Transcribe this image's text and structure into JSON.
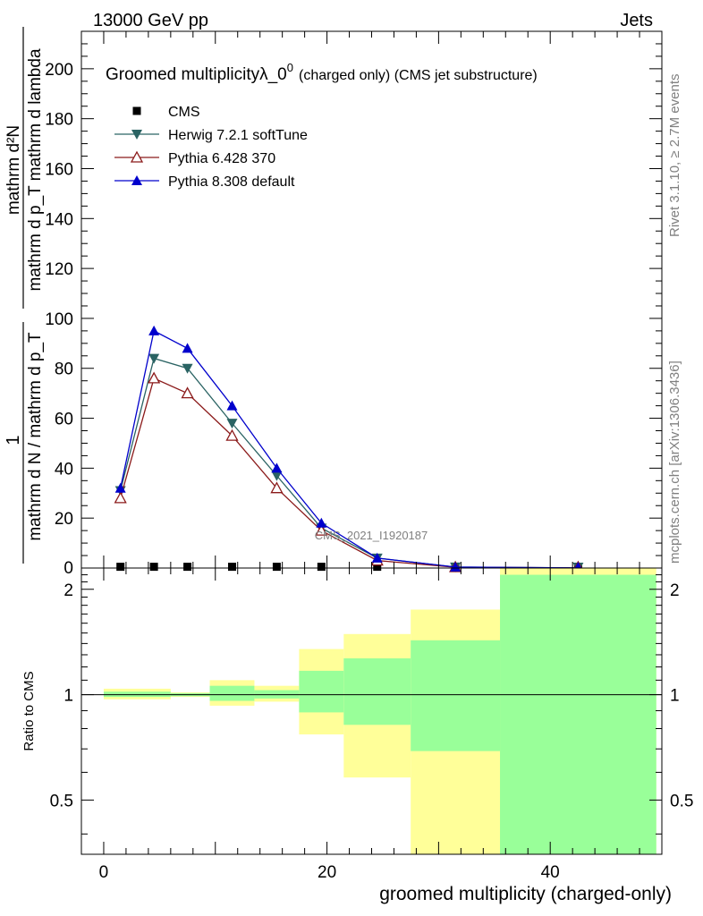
{
  "header": {
    "left": "13000 GeV pp",
    "right": "Jets"
  },
  "side_labels": {
    "rivet": "Rivet 3.1.10, ≥ 2.7M events",
    "mcplots": "mcplots.cern.ch [arXiv:1306.3436]"
  },
  "chart_data": [
    {
      "type": "line",
      "title": "Groomed multiplicityλ_0",
      "title_sup": "0",
      "subtitle": "(charged only) (CMS jet substructure)",
      "watermark": "CMS_2021_I1920187",
      "ylabel_numerator": "mathrm d²N",
      "ylabel_denominator": "mathrm d p_T mathrm d lambda",
      "ylabel_prefix_numerator": "1",
      "ylabel_prefix_denominator": "mathrm d N / mathrm d p_T",
      "xlim": [
        -2,
        50
      ],
      "ylim": [
        0,
        215
      ],
      "yticks": [
        20,
        40,
        60,
        80,
        100,
        120,
        140,
        160,
        180,
        200
      ],
      "ytick_labels": [
        "20",
        "40",
        "60",
        "80",
        "100",
        "120",
        "140",
        "160",
        "180",
        "200"
      ],
      "ytick_zero_label": "0",
      "x": [
        1.5,
        4.5,
        7.5,
        11.5,
        15.5,
        19.5,
        24.5,
        31.5,
        42.5
      ],
      "bin_edges": [
        0,
        3,
        6,
        9,
        14,
        17,
        22,
        27,
        36,
        49
      ],
      "series": [
        {
          "name": "CMS",
          "color": "#000000",
          "marker": "square",
          "values": [
            0.5,
            0.5,
            0.5,
            0.5,
            0.5,
            0.5,
            0.5,
            0.3,
            0.3
          ]
        },
        {
          "name": "Herwig 7.2.1 softTune",
          "color": "#2a6363",
          "marker": "triangle-down",
          "values": [
            31,
            84,
            80,
            58,
            37,
            16,
            4,
            0.4,
            0.05
          ]
        },
        {
          "name": "Pythia 6.428 370",
          "color": "#8b1a1a",
          "marker": "triangle-up-open",
          "values": [
            28,
            76,
            70,
            53,
            32,
            15,
            3,
            0.3,
            0.05
          ]
        },
        {
          "name": "Pythia 8.308 default",
          "color": "#0000cc",
          "marker": "triangle-up",
          "values": [
            32,
            95,
            88,
            65,
            40,
            18,
            4,
            0.4,
            0.05
          ]
        }
      ]
    },
    {
      "type": "area",
      "ylabel": "Ratio to CMS",
      "xlabel": "groomed multiplicity (charged-only)",
      "xlim": [
        -2,
        50
      ],
      "ylim": [
        0.35,
        2.3
      ],
      "yticks": [
        0.5,
        1,
        2
      ],
      "ytick_labels": [
        "0.5",
        "1",
        "2"
      ],
      "xticks": [
        0,
        20,
        40
      ],
      "xtick_labels": [
        "0",
        "20",
        "40"
      ],
      "reference_line": 1,
      "bands": [
        {
          "x0": 0,
          "x1": 6,
          "yellow": [
            0.97,
            1.04
          ],
          "green": [
            0.985,
            1.02
          ]
        },
        {
          "x0": 6,
          "x1": 9.5,
          "yellow": [
            0.985,
            1.015
          ],
          "green": [
            0.99,
            1.01
          ]
        },
        {
          "x0": 9.5,
          "x1": 13.5,
          "yellow": [
            0.93,
            1.1
          ],
          "green": [
            0.96,
            1.06
          ]
        },
        {
          "x0": 13.5,
          "x1": 17.5,
          "yellow": [
            0.955,
            1.06
          ],
          "green": [
            0.975,
            1.03
          ]
        },
        {
          "x0": 17.5,
          "x1": 21.5,
          "yellow": [
            0.77,
            1.35
          ],
          "green": [
            0.89,
            1.17
          ]
        },
        {
          "x0": 21.5,
          "x1": 27.5,
          "yellow": [
            0.58,
            1.49
          ],
          "green": [
            0.82,
            1.27
          ]
        },
        {
          "x0": 27.5,
          "x1": 35.5,
          "yellow": [
            0.35,
            1.75
          ],
          "green": [
            0.69,
            1.43
          ]
        },
        {
          "x0": 35.5,
          "x1": 49.5,
          "yellow": [
            0.35,
            2.4
          ],
          "green": [
            0.35,
            2.2
          ]
        }
      ],
      "colors": {
        "yellow": "#ffff99",
        "green": "#99ff99"
      }
    }
  ]
}
